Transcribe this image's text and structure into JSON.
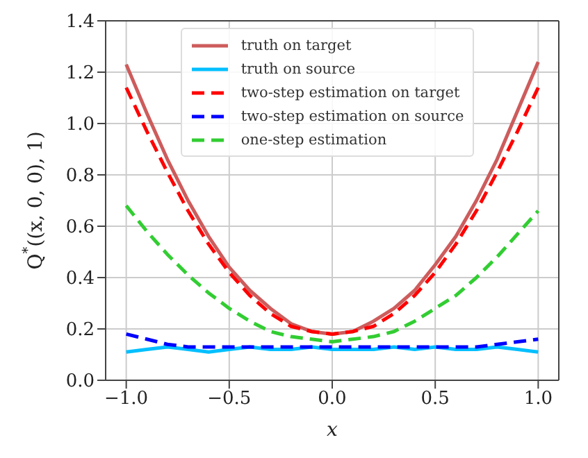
{
  "chart_data": {
    "type": "line",
    "xlabel": "x",
    "ylabel": "Q$^{*}$((x, 0, 0), 1)",
    "x": [
      -1,
      -0.9,
      -0.8,
      -0.7,
      -0.6,
      -0.5,
      -0.4,
      -0.3,
      -0.2,
      -0.1,
      0,
      0.1,
      0.2,
      0.3,
      0.4,
      0.5,
      0.6,
      0.7,
      0.8,
      0.9,
      1
    ],
    "series": [
      {
        "name": "truth on target",
        "color": "#cd5c5c",
        "line_style": "solid",
        "values": [
          1.23,
          1.04,
          0.86,
          0.7,
          0.56,
          0.44,
          0.35,
          0.28,
          0.22,
          0.19,
          0.18,
          0.19,
          0.23,
          0.28,
          0.35,
          0.45,
          0.56,
          0.7,
          0.86,
          1.05,
          1.24
        ]
      },
      {
        "name": "truth on source",
        "color": "#00bfff",
        "line_style": "solid",
        "values": [
          0.11,
          0.12,
          0.13,
          0.12,
          0.11,
          0.12,
          0.13,
          0.12,
          0.12,
          0.13,
          0.12,
          0.12,
          0.12,
          0.13,
          0.12,
          0.13,
          0.12,
          0.12,
          0.13,
          0.12,
          0.11
        ]
      },
      {
        "name": "two-step estimation on target",
        "color": "#ff0000",
        "line_style": "dashed",
        "values": [
          1.14,
          0.97,
          0.81,
          0.66,
          0.53,
          0.42,
          0.33,
          0.26,
          0.21,
          0.19,
          0.18,
          0.19,
          0.21,
          0.26,
          0.33,
          0.42,
          0.53,
          0.66,
          0.81,
          0.97,
          1.14
        ]
      },
      {
        "name": "two-step estimation on source",
        "color": "#0000ff",
        "line_style": "dashed",
        "values": [
          0.18,
          0.16,
          0.14,
          0.13,
          0.13,
          0.13,
          0.13,
          0.13,
          0.13,
          0.13,
          0.13,
          0.13,
          0.13,
          0.13,
          0.13,
          0.13,
          0.13,
          0.13,
          0.14,
          0.15,
          0.16
        ]
      },
      {
        "name": "one-step estimation",
        "color": "#32cd32",
        "line_style": "dashed",
        "values": [
          0.68,
          0.58,
          0.49,
          0.41,
          0.34,
          0.28,
          0.23,
          0.19,
          0.17,
          0.16,
          0.15,
          0.16,
          0.17,
          0.19,
          0.23,
          0.28,
          0.33,
          0.4,
          0.48,
          0.57,
          0.66
        ]
      }
    ],
    "xlim": [
      -1.1,
      1.1
    ],
    "xticks": [
      {
        "value": -1,
        "label": "−1.0"
      },
      {
        "value": -0.5,
        "label": "−0.5"
      },
      {
        "value": 0,
        "label": "0.0"
      },
      {
        "value": 0.5,
        "label": "0.5"
      },
      {
        "value": 1,
        "label": "1.0"
      }
    ],
    "ylim": [
      0,
      1.4
    ],
    "yticks": [
      {
        "value": 0,
        "label": "0.0"
      },
      {
        "value": 0.2,
        "label": "0.2"
      },
      {
        "value": 0.4,
        "label": "0.4"
      },
      {
        "value": 0.6,
        "label": "0.6"
      },
      {
        "value": 0.8,
        "label": "0.8"
      },
      {
        "value": 1,
        "label": "1.0"
      },
      {
        "value": 1.2,
        "label": "1.2"
      },
      {
        "value": 1.4,
        "label": "1.4"
      }
    ],
    "grid": true,
    "legend": "top",
    "marker": "none"
  }
}
